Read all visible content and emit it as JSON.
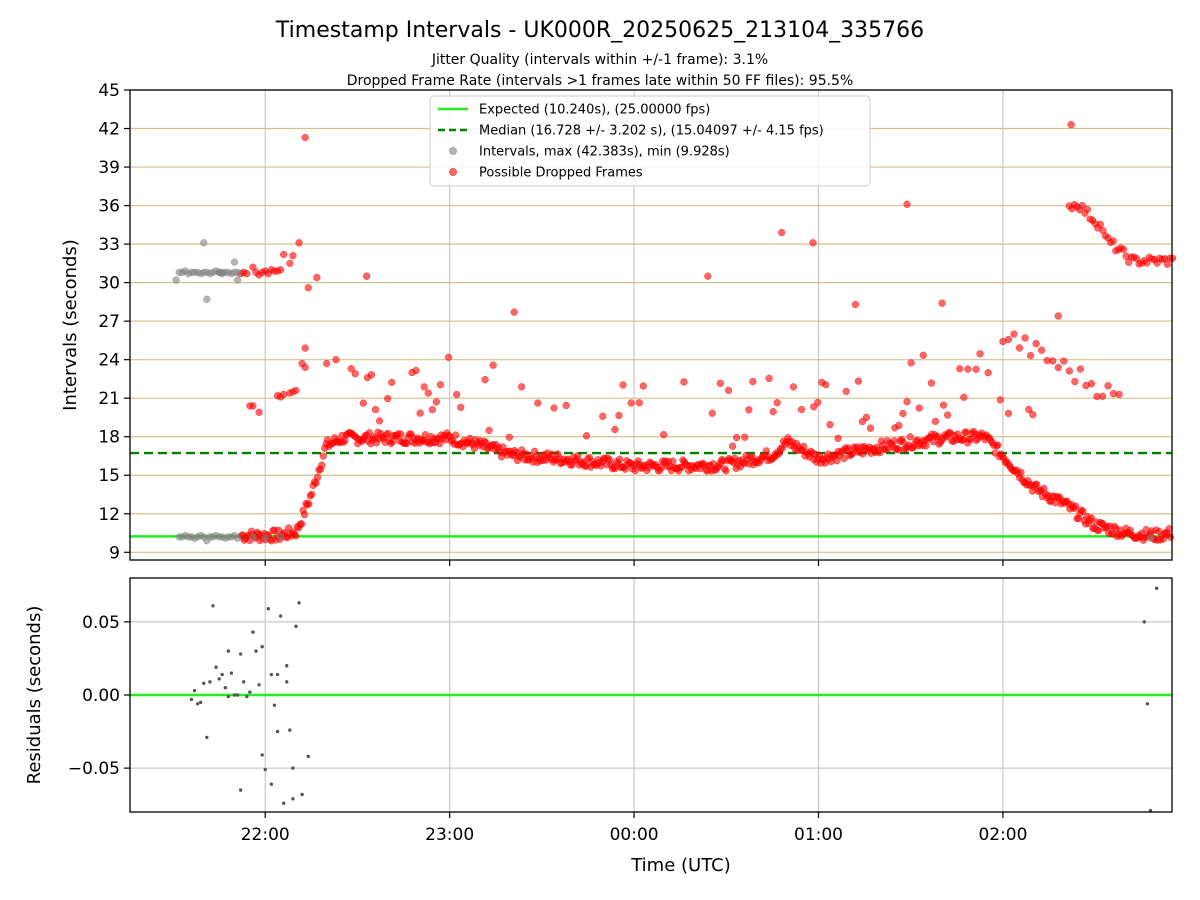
{
  "chart_data": [
    {
      "type": "scatter",
      "title": "Timestamp Intervals - UK000R_20250625_213104_335766",
      "subtitle_lines": [
        "Jitter Quality (intervals within +/-1 frame): 3.1%",
        "Dropped Frame Rate (intervals >1 frames late within 50 FF files): 95.5%"
      ],
      "xlabel": "",
      "ylabel": "Intervals (seconds)",
      "xlim_hours": [
        21.2667,
        2.9167
      ],
      "ylim": [
        8.4,
        45
      ],
      "y_ticks": [
        9,
        12,
        15,
        18,
        21,
        24,
        27,
        30,
        33,
        36,
        39,
        42,
        45
      ],
      "x_ticks": [
        {
          "value": "22:00",
          "hour": 22
        },
        {
          "value": "23:00",
          "hour": 23
        },
        {
          "value": "00:00",
          "hour": 0
        },
        {
          "value": "01:00",
          "hour": 1
        },
        {
          "value": "02:00",
          "hour": 2
        }
      ],
      "x_tick_labels_shown": false,
      "grid": true,
      "legend_position": "top-center",
      "legend": [
        "Expected (10.240s), (25.00000 fps)",
        "Median (16.728 +/- 3.202 s), (15.04097 +/- 4.15 fps)",
        "Intervals, max (42.383s), min (9.928s)",
        "Possible Dropped Frames"
      ],
      "expected_interval": 10.24,
      "median_interval": 16.728,
      "colors": {
        "expected": "#22ee22",
        "median": "#008000",
        "intervals": "#808080",
        "dropped": "#ff0000",
        "hgrid": "#d4c28a",
        "vgrid": "#c8c8c8"
      },
      "series": [
        {
          "name": "Intervals, max (42.383s), min (9.928s)",
          "color": "#808080",
          "points": [
            [
              "21:32",
              30.8
            ],
            [
              "21:33",
              30.8
            ],
            [
              "21:34",
              30.9
            ],
            [
              "21:35",
              30.7
            ],
            [
              "21:36",
              30.8
            ],
            [
              "21:37",
              30.8
            ],
            [
              "21:38",
              30.8
            ],
            [
              "21:39",
              30.7
            ],
            [
              "21:40",
              30.8
            ],
            [
              "21:41",
              30.8
            ],
            [
              "21:42",
              30.7
            ],
            [
              "21:43",
              30.8
            ],
            [
              "21:44",
              30.9
            ],
            [
              "21:45",
              30.8
            ],
            [
              "21:46",
              30.7
            ],
            [
              "21:47",
              30.8
            ],
            [
              "21:48",
              30.8
            ],
            [
              "21:49",
              30.7
            ],
            [
              "21:50",
              30.8
            ],
            [
              "21:51",
              30.8
            ],
            [
              "21:31",
              30.2
            ],
            [
              "21:40",
              33.1
            ],
            [
              "21:41",
              28.7
            ],
            [
              "21:50",
              31.6
            ],
            [
              "21:51",
              30.2
            ],
            [
              "21:46",
              30.8
            ],
            [
              "21:45",
              30.8
            ],
            [
              "21:32",
              10.2
            ],
            [
              "21:33",
              10.2
            ],
            [
              "21:34",
              10.3
            ],
            [
              "21:35",
              10.2
            ],
            [
              "21:36",
              10.2
            ],
            [
              "21:37",
              10.1
            ],
            [
              "21:38",
              10.2
            ],
            [
              "21:39",
              10.3
            ],
            [
              "21:40",
              10.2
            ],
            [
              "21:41",
              9.9
            ],
            [
              "21:42",
              10.2
            ],
            [
              "21:43",
              10.2
            ],
            [
              "21:44",
              10.3
            ],
            [
              "21:45",
              10.2
            ],
            [
              "21:46",
              10.2
            ],
            [
              "21:47",
              10.1
            ],
            [
              "21:48",
              10.2
            ],
            [
              "21:49",
              10.2
            ],
            [
              "21:50",
              10.3
            ],
            [
              "21:51",
              10.1
            ],
            [
              "21:56",
              10.2
            ],
            [
              "22:00",
              10.1
            ],
            [
              "22:05",
              10.2
            ],
            [
              "02:48",
              10.1
            ]
          ]
        },
        {
          "name": "Possible Dropped Frames",
          "color": "#ff0000",
          "points": [
            [
              "21:52",
              30.7
            ],
            [
              "21:53",
              30.8
            ],
            [
              "21:54",
              30.7
            ],
            [
              "21:56",
              31.2
            ],
            [
              "21:57",
              30.8
            ],
            [
              "21:58",
              30.6
            ],
            [
              "21:59",
              30.8
            ],
            [
              "22:00",
              30.9
            ],
            [
              "22:01",
              30.7
            ],
            [
              "22:02",
              31.0
            ],
            [
              "22:03",
              30.9
            ],
            [
              "22:04",
              30.9
            ],
            [
              "22:05",
              31.0
            ],
            [
              "22:06",
              32.2
            ],
            [
              "22:08",
              31.5
            ],
            [
              "22:09",
              32.1
            ],
            [
              "22:11",
              33.1
            ],
            [
              "22:14",
              29.6
            ],
            [
              "22:13",
              41.3
            ],
            [
              "21:55",
              20.4
            ],
            [
              "21:56",
              20.4
            ],
            [
              "21:58",
              19.9
            ],
            [
              "22:04",
              21.2
            ],
            [
              "22:05",
              21.1
            ],
            [
              "22:06",
              21.3
            ],
            [
              "22:08",
              21.4
            ],
            [
              "22:09",
              21.5
            ],
            [
              "22:10",
              21.6
            ],
            [
              "22:12",
              23.7
            ],
            [
              "22:13",
              24.9
            ],
            [
              "22:13",
              23.4
            ],
            [
              "22:20",
              23.7
            ],
            [
              "22:23",
              24.0
            ]
          ]
        }
      ],
      "residuals": {
        "type": "scatter",
        "ylabel": "Residuals (seconds)",
        "xlabel": "Time (UTC)",
        "ylim": [
          -0.08,
          0.08
        ],
        "y_ticks": [
          {
            "value": 0.05,
            "label": "0.05"
          },
          {
            "value": 0.0,
            "label": "0.00"
          },
          {
            "value": -0.05,
            "label": "−0.05"
          }
        ],
        "x_tick_labels": [
          "22:00",
          "23:00",
          "00:00",
          "01:00",
          "02:00"
        ],
        "zero_line_color": "#22ee22",
        "point_color": "#555555",
        "points": [
          [
            "21:36",
            -0.003
          ],
          [
            "21:37",
            0.003
          ],
          [
            "21:38",
            -0.006
          ],
          [
            "21:39",
            -0.005
          ],
          [
            "21:40",
            0.008
          ],
          [
            "21:41",
            -0.029
          ],
          [
            "21:42",
            0.009
          ],
          [
            "21:43",
            0.061
          ],
          [
            "21:44",
            0.019
          ],
          [
            "21:45",
            0.011
          ],
          [
            "21:46",
            0.014
          ],
          [
            "21:47",
            0.005
          ],
          [
            "21:48",
            0.03
          ],
          [
            "21:48",
            -0.001
          ],
          [
            "21:49",
            0.015
          ],
          [
            "21:50",
            0.0
          ],
          [
            "21:51",
            0.0
          ],
          [
            "21:52",
            -0.065
          ],
          [
            "21:52",
            0.028
          ],
          [
            "21:53",
            0.009
          ],
          [
            "21:54",
            -0.001
          ],
          [
            "21:55",
            0.002
          ],
          [
            "21:56",
            0.043
          ],
          [
            "21:57",
            0.03
          ],
          [
            "21:58",
            0.007
          ],
          [
            "21:59",
            -0.041
          ],
          [
            "22:00",
            -0.051
          ],
          [
            "21:59",
            0.033
          ],
          [
            "22:01",
            0.059
          ],
          [
            "22:02",
            0.014
          ],
          [
            "22:03",
            -0.007
          ],
          [
            "22:04",
            -0.025
          ],
          [
            "22:05",
            0.054
          ],
          [
            "22:06",
            -0.074
          ],
          [
            "22:07",
            0.02
          ],
          [
            "22:08",
            -0.024
          ],
          [
            "22:09",
            -0.05
          ],
          [
            "22:09",
            -0.071
          ],
          [
            "22:10",
            0.047
          ],
          [
            "22:11",
            0.063
          ],
          [
            "22:12",
            -0.068
          ],
          [
            "22:14",
            -0.042
          ],
          [
            "22:04",
            0.014
          ],
          [
            "22:02",
            -0.061
          ],
          [
            "22:07",
            0.009
          ],
          [
            "02:46",
            0.05
          ],
          [
            "02:47",
            -0.006
          ],
          [
            "02:48",
            -0.079
          ],
          [
            "02:50",
            0.073
          ]
        ]
      }
    }
  ]
}
